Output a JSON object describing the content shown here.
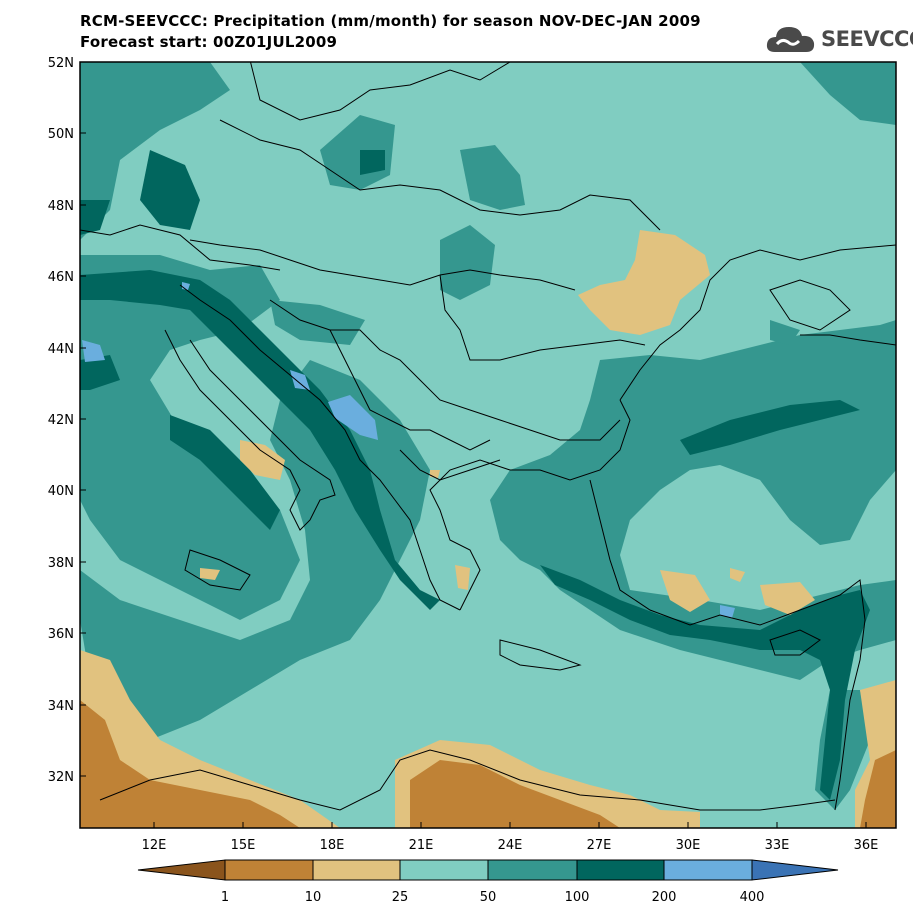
{
  "header": {
    "title": "RCM-SEEVCCC: Precipitation (mm/month) for season NOV-DEC-JAN 2009",
    "subtitle": "Forecast start: 00Z01JUL2009",
    "logo_text": "SEEVCCC"
  },
  "map": {
    "lat_labels": [
      "52N",
      "50N",
      "48N",
      "46N",
      "44N",
      "42N",
      "40N",
      "38N",
      "36N",
      "34N",
      "32N"
    ],
    "lon_labels": [
      "12E",
      "15E",
      "18E",
      "21E",
      "24E",
      "27E",
      "30E",
      "33E",
      "36E"
    ],
    "palette": {
      "c1": "#8a541c",
      "c10": "#bf8236",
      "c25": "#e1c27f",
      "c50": "#80cdc1",
      "c100": "#35978f",
      "c200": "#01665e",
      "c400": "#6aaede",
      "c400plus": "#3a73b5"
    }
  },
  "colorbar": {
    "labels": [
      "1",
      "10",
      "25",
      "50",
      "100",
      "200",
      "400"
    ]
  }
}
